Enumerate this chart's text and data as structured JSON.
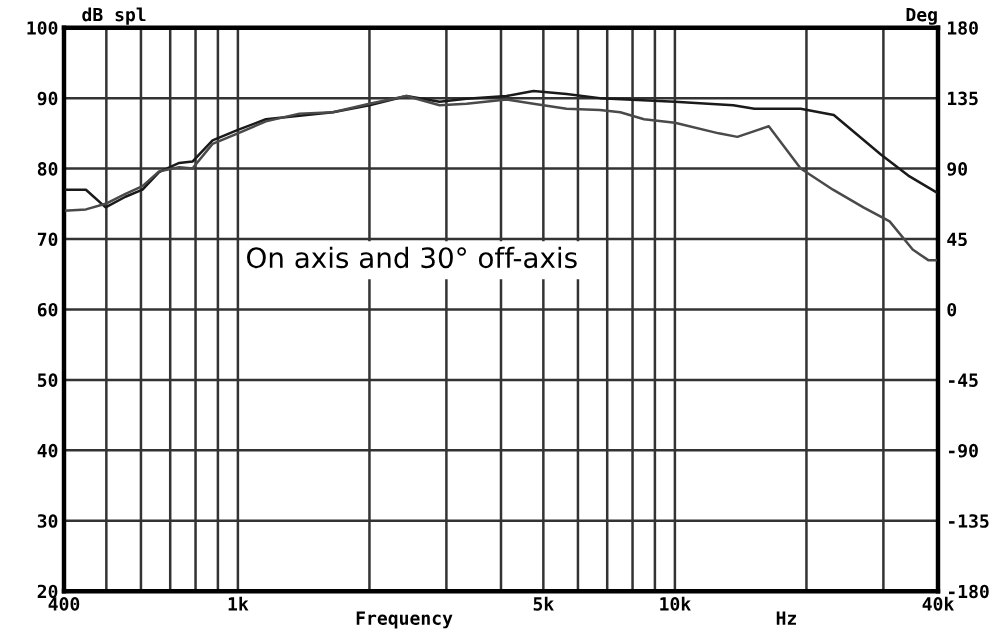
{
  "chart_data": {
    "type": "line",
    "ylabel": "dB spl",
    "y2label": "Deg",
    "xlabel": "Frequency",
    "annotations": [
      "On axis and 30° off-axis",
      "Hz"
    ],
    "log": "x",
    "grid": true,
    "marker": "none",
    "line_style": "solid",
    "xlim": [
      400,
      40000
    ],
    "xticks": [
      {
        "value": 400,
        "label": "400"
      },
      {
        "value": 500,
        "label": null
      },
      {
        "value": 600,
        "label": null
      },
      {
        "value": 700,
        "label": null
      },
      {
        "value": 800,
        "label": null
      },
      {
        "value": 900,
        "label": null
      },
      {
        "value": 1000,
        "label": "1k"
      },
      {
        "value": 2000,
        "label": null
      },
      {
        "value": 3000,
        "label": null
      },
      {
        "value": 4000,
        "label": null
      },
      {
        "value": 5000,
        "label": "5k"
      },
      {
        "value": 6000,
        "label": null
      },
      {
        "value": 7000,
        "label": null
      },
      {
        "value": 8000,
        "label": null
      },
      {
        "value": 9000,
        "label": null
      },
      {
        "value": 10000,
        "label": "10k"
      },
      {
        "value": 20000,
        "label": null
      },
      {
        "value": 30000,
        "label": null
      },
      {
        "value": 40000,
        "label": "40k"
      }
    ],
    "ylim": [
      20,
      100
    ],
    "yticks": [
      20,
      30,
      40,
      50,
      60,
      70,
      80,
      90,
      100
    ],
    "y2lim": [
      -180,
      180
    ],
    "y2ticks": [
      -180,
      -135,
      -90,
      -45,
      0,
      45,
      90,
      135,
      180
    ],
    "series": [
      {
        "color": "#1a1a1a",
        "x": [
          400,
          449,
          498,
          553,
          605,
          660,
          734,
          787,
          875,
          1000,
          1159,
          1383,
          1649,
          2000,
          2431,
          2895,
          3335,
          4118,
          4746,
          5650,
          6735,
          10000,
          13600,
          15200,
          19400,
          23100,
          29600,
          34200,
          40000
        ],
        "values": [
          77,
          77,
          74.5,
          76,
          77,
          79.5,
          80.8,
          81,
          84,
          85.5,
          87,
          87.5,
          88,
          89,
          90.3,
          89.5,
          89.9,
          90.3,
          91,
          90.6,
          90,
          89.5,
          89,
          88.5,
          88.5,
          87.6,
          82,
          79,
          76.5
        ]
      },
      {
        "color": "#4a4a4a",
        "x": [
          400,
          449,
          498,
          553,
          605,
          660,
          734,
          787,
          875,
          1000,
          1159,
          1383,
          1649,
          2000,
          2431,
          2895,
          3335,
          4118,
          4746,
          5650,
          6735,
          7500,
          8500,
          10000,
          12600,
          13900,
          15500,
          16400,
          19400,
          23000,
          27000,
          31000,
          35000,
          38000,
          40000
        ],
        "values": [
          74,
          74.2,
          75,
          76.4,
          77.5,
          79.6,
          80.2,
          80,
          83.5,
          85,
          86.7,
          87.8,
          88,
          89.2,
          90.3,
          89,
          89.2,
          89.8,
          89.2,
          88.5,
          88.3,
          88,
          87,
          86.5,
          85,
          84.5,
          85.5,
          86,
          80,
          77,
          74.5,
          72.5,
          68.5,
          67,
          67
        ]
      }
    ]
  }
}
